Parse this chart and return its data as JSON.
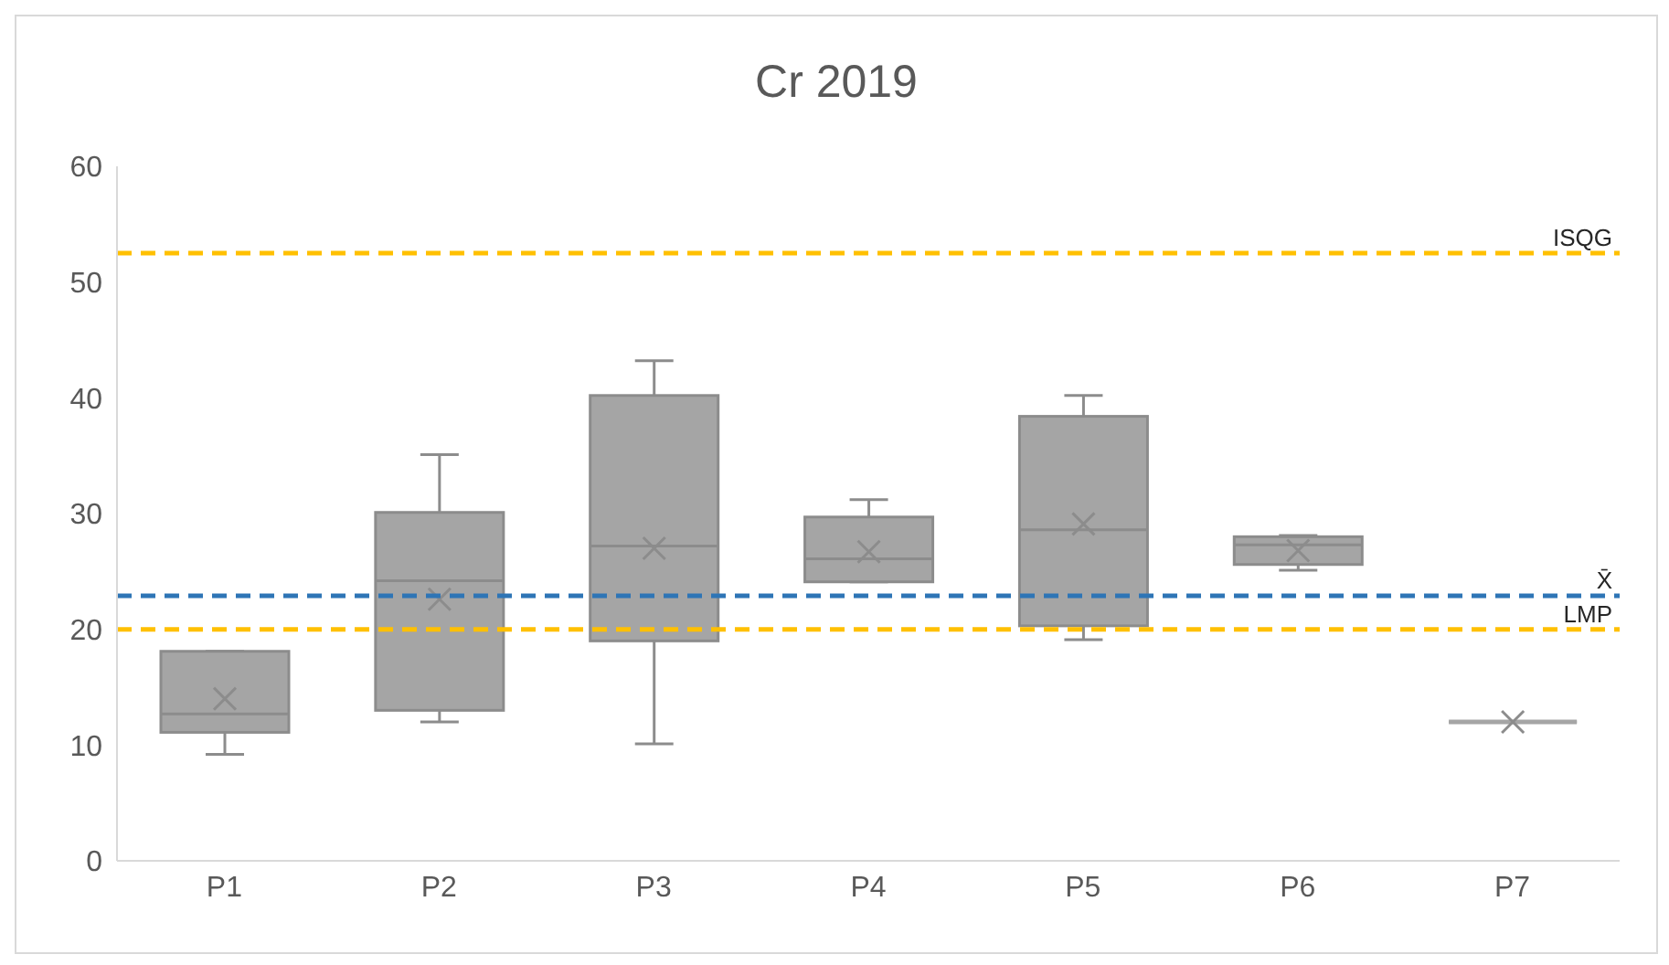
{
  "chart_data": {
    "type": "box",
    "title": "Cr 2019",
    "categories": [
      "P1",
      "P2",
      "P3",
      "P4",
      "P5",
      "P6",
      "P7"
    ],
    "color": "#a5a5a5",
    "boxes": [
      {
        "low": 9.2,
        "q1": 11.1,
        "median": 12.7,
        "q3": 18.1,
        "high": 18.1,
        "mean": 14.0
      },
      {
        "low": 12.0,
        "q1": 13.0,
        "median": 24.2,
        "q3": 30.1,
        "high": 35.1,
        "mean": 22.6
      },
      {
        "low": 10.1,
        "q1": 19.0,
        "median": 27.2,
        "q3": 40.2,
        "high": 43.2,
        "mean": 27.0
      },
      {
        "low": 24.1,
        "q1": 24.1,
        "median": 26.1,
        "q3": 29.7,
        "high": 31.2,
        "mean": 26.7
      },
      {
        "low": 19.1,
        "q1": 20.3,
        "median": 28.6,
        "q3": 38.4,
        "high": 40.2,
        "mean": 29.1
      },
      {
        "low": 25.1,
        "q1": 25.6,
        "median": 27.3,
        "q3": 28.0,
        "high": 28.1,
        "mean": 26.8
      },
      {
        "low": 12.0,
        "q1": 12.0,
        "median": 12.0,
        "q3": 12.0,
        "high": 12.0,
        "mean": 12.0
      }
    ],
    "ylim": [
      0,
      60
    ],
    "yticks": [
      0,
      10,
      20,
      30,
      40,
      50,
      60
    ],
    "grid": false,
    "legend": false,
    "ref_lines": [
      {
        "axis": "y",
        "value": 52.5,
        "label": "ISQG",
        "color": "#ffc000",
        "line_style": "dashed"
      },
      {
        "axis": "y",
        "value": 22.9,
        "label": "X̄",
        "color": "#2e75b6",
        "line_style": "dashed"
      },
      {
        "axis": "y",
        "value": 20,
        "label": "LMP",
        "color": "#ffc000",
        "line_style": "dashed"
      }
    ]
  }
}
